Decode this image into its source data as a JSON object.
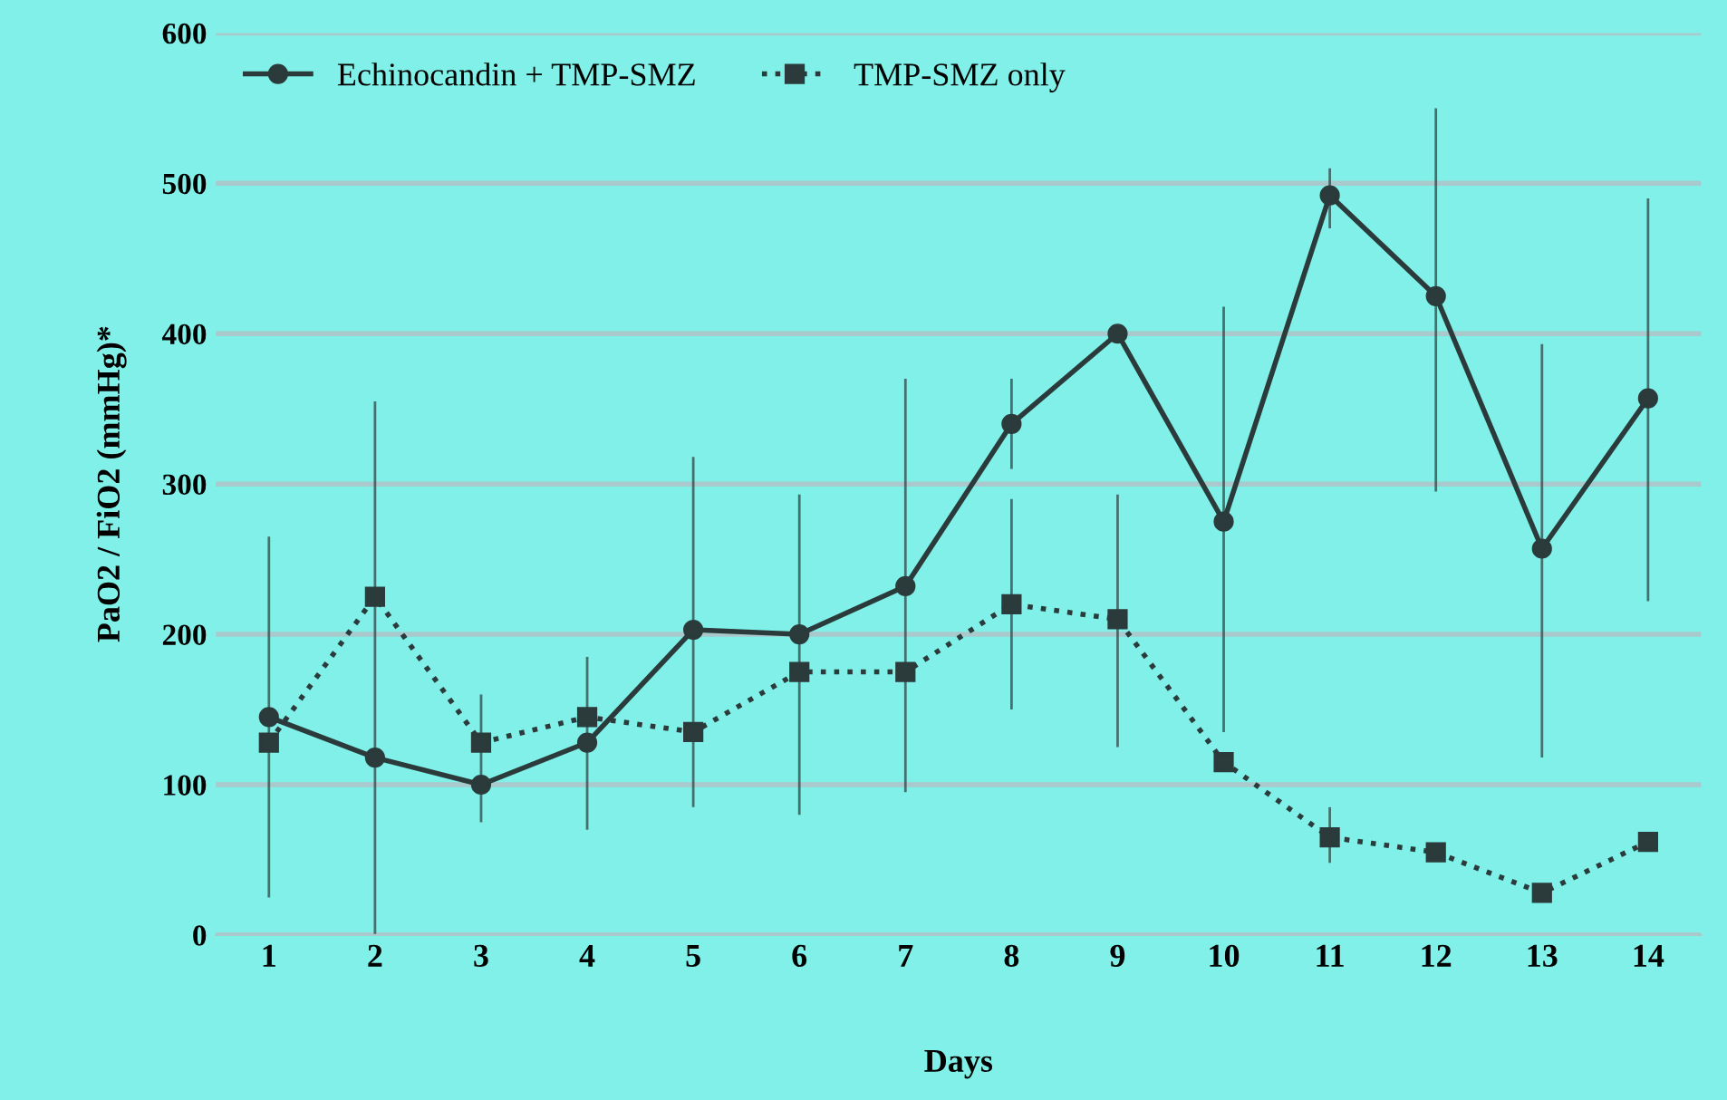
{
  "chart_data": {
    "type": "line",
    "xlabel": "Days",
    "ylabel": "PaO2 / FiO2 (mmHg)*",
    "categories": [
      "1",
      "2",
      "3",
      "4",
      "5",
      "6",
      "7",
      "8",
      "9",
      "10",
      "11",
      "12",
      "13",
      "14"
    ],
    "series": [
      {
        "name": "Echinocandin + TMP-SMZ",
        "color": "#2b3a3a",
        "marker": "circle",
        "line_style": "solid",
        "values": [
          145,
          118,
          100,
          128,
          203,
          200,
          232,
          340,
          400,
          275,
          492,
          425,
          257,
          357
        ],
        "errors": [
          [
            25,
            265
          ],
          null,
          [
            75,
            160
          ],
          [
            70,
            185
          ],
          [
            85,
            318
          ],
          [
            80,
            293
          ],
          [
            95,
            370
          ],
          [
            310,
            370
          ],
          null,
          [
            135,
            418
          ],
          [
            470,
            510
          ],
          [
            295,
            550
          ],
          [
            118,
            393
          ],
          [
            222,
            490
          ]
        ]
      },
      {
        "name": "TMP-SMZ only",
        "color": "#2b3a3a",
        "marker": "square",
        "line_style": "dotted",
        "values": [
          128,
          225,
          128,
          145,
          135,
          175,
          175,
          220,
          210,
          115,
          65,
          55,
          28,
          62
        ],
        "errors": [
          null,
          [
            0,
            355
          ],
          null,
          null,
          null,
          null,
          null,
          [
            150,
            290
          ],
          [
            125,
            293
          ],
          null,
          [
            48,
            85
          ],
          null,
          null,
          null
        ]
      }
    ],
    "ylim": [
      0,
      600
    ],
    "yticks": [
      0,
      100,
      200,
      300,
      400,
      500,
      600
    ],
    "grid": "y",
    "legend": "top left"
  }
}
